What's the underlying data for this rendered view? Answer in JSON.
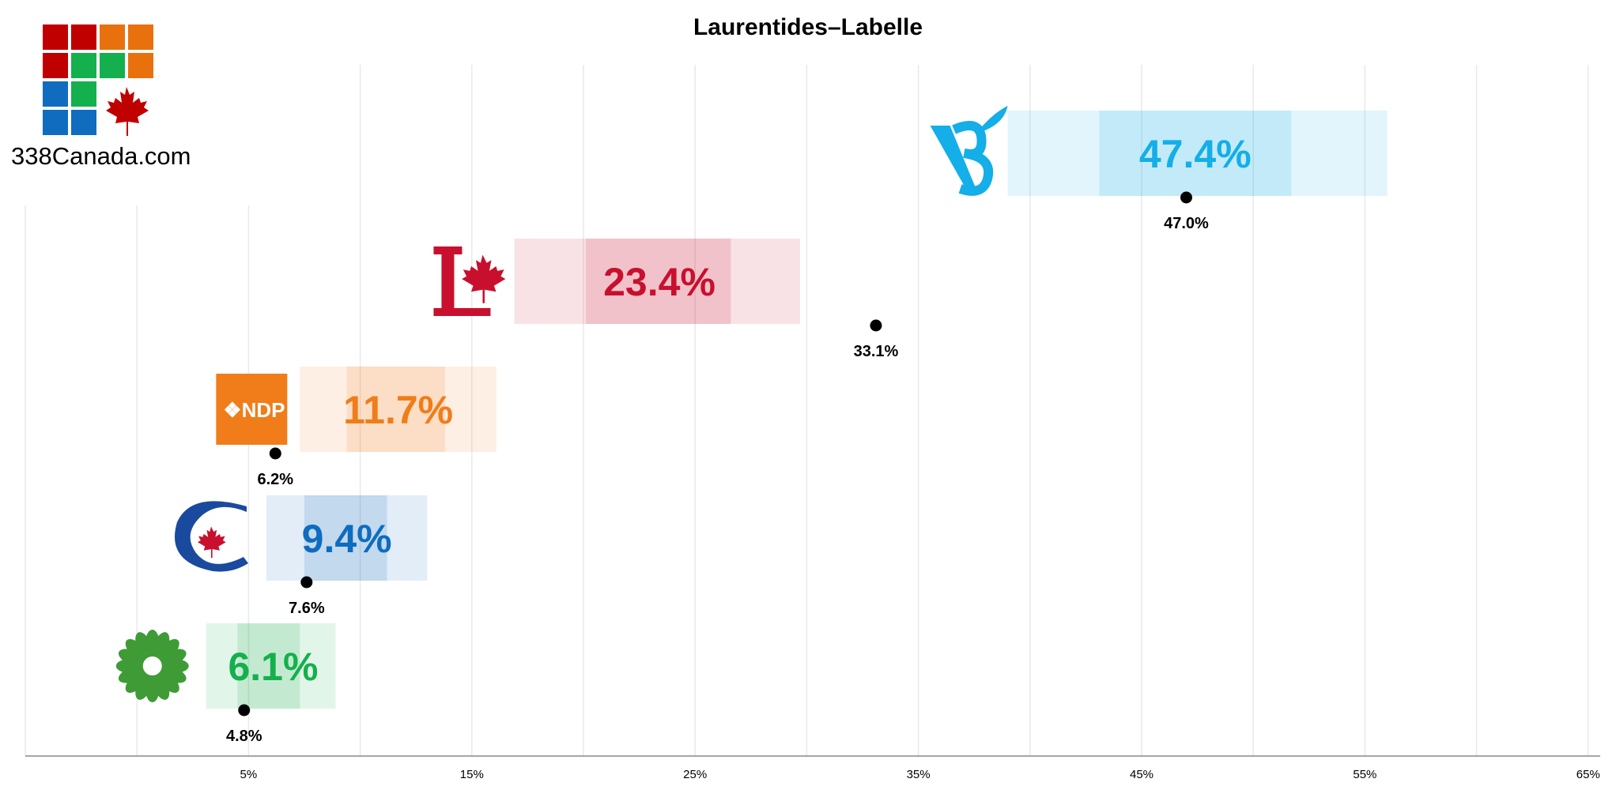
{
  "header": {
    "title": "Laurentides–Labelle"
  },
  "brand": {
    "name": "338Canada.com"
  },
  "colors": {
    "bq": "#14aee8",
    "lpc": "#c8102e",
    "ndp": "#f07d1a",
    "cpc": "#0f6cbf",
    "gpc": "#14b04d",
    "ppc": "#7b4fa8"
  },
  "chart_data": {
    "type": "bar",
    "title": "Laurentides–Labelle",
    "xlim": [
      -5,
      65
    ],
    "x_ticks": [
      "5%",
      "15%",
      "25%",
      "35%",
      "45%",
      "55%",
      "65%"
    ],
    "x_tick_values": [
      5,
      15,
      25,
      35,
      45,
      55,
      65
    ],
    "grid": true,
    "series": [
      {
        "party": "BQ",
        "projection": 47.4,
        "projection_label": "47.4%",
        "likely_range": [
          43.1,
          51.7
        ],
        "full_range": [
          39.0,
          56.0
        ],
        "previous": 47.0,
        "previous_label": "47.0%",
        "color": "#14aee8",
        "logo": "bq-logo"
      },
      {
        "party": "LPC",
        "projection": 23.4,
        "projection_label": "23.4%",
        "likely_range": [
          20.1,
          26.6
        ],
        "full_range": [
          16.9,
          29.7
        ],
        "previous": 33.1,
        "previous_label": "33.1%",
        "color": "#c8102e",
        "logo": "lpc-logo"
      },
      {
        "party": "NDP",
        "projection": 11.7,
        "projection_label": "11.7%",
        "likely_range": [
          9.4,
          13.8
        ],
        "full_range": [
          7.3,
          16.1
        ],
        "previous": 6.2,
        "previous_label": "6.2%",
        "color": "#f07d1a",
        "logo": "ndp-logo"
      },
      {
        "party": "CPC",
        "projection": 9.4,
        "projection_label": "9.4%",
        "likely_range": [
          7.5,
          11.2
        ],
        "full_range": [
          5.8,
          13.0
        ],
        "previous": 7.6,
        "previous_label": "7.6%",
        "color": "#0f6cbf",
        "logo": "cpc-logo"
      },
      {
        "party": "GPC",
        "projection": 6.1,
        "projection_label": "6.1%",
        "likely_range": [
          4.5,
          7.3
        ],
        "full_range": [
          3.1,
          8.9
        ],
        "previous": 4.8,
        "previous_label": "4.8%",
        "color": "#14b04d",
        "logo": "gpc-logo"
      }
    ]
  }
}
